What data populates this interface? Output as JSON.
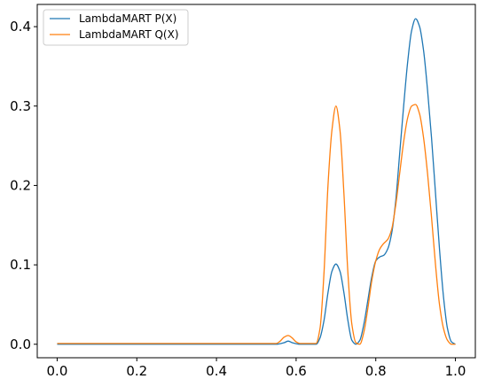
{
  "chart_data": {
    "type": "line",
    "title": "",
    "xlabel": "",
    "ylabel": "",
    "xlim": [
      -0.05,
      1.05
    ],
    "ylim": [
      -0.017,
      0.428
    ],
    "x_ticks": [
      0.0,
      0.2,
      0.4,
      0.6,
      0.8,
      1.0
    ],
    "x_tick_labels": [
      "0.0",
      "0.2",
      "0.4",
      "0.6",
      "0.8",
      "1.0"
    ],
    "y_ticks": [
      0.0,
      0.1,
      0.2,
      0.3,
      0.4
    ],
    "y_tick_labels": [
      "0.0",
      "0.1",
      "0.2",
      "0.3",
      "0.4"
    ],
    "grid": false,
    "legend_position": "top-left",
    "series": [
      {
        "name": "LambdaMART P(X)",
        "color": "#1f77b4",
        "x": [
          0.0,
          0.1,
          0.2,
          0.3,
          0.4,
          0.5,
          0.55,
          0.57,
          0.58,
          0.59,
          0.61,
          0.65,
          0.66,
          0.67,
          0.68,
          0.69,
          0.7,
          0.71,
          0.72,
          0.73,
          0.74,
          0.75,
          0.76,
          0.77,
          0.78,
          0.79,
          0.8,
          0.81,
          0.82,
          0.83,
          0.84,
          0.85,
          0.86,
          0.87,
          0.88,
          0.89,
          0.9,
          0.91,
          0.92,
          0.93,
          0.94,
          0.95,
          0.96,
          0.97,
          0.98,
          0.99,
          1.0
        ],
        "y": [
          0.0,
          0.0,
          0.0,
          0.0,
          0.0,
          0.0,
          0.0,
          0.002,
          0.004,
          0.002,
          0.0,
          0.0,
          0.008,
          0.03,
          0.065,
          0.092,
          0.101,
          0.092,
          0.065,
          0.03,
          0.005,
          0.0,
          0.005,
          0.025,
          0.055,
          0.085,
          0.105,
          0.11,
          0.112,
          0.12,
          0.14,
          0.18,
          0.24,
          0.3,
          0.355,
          0.395,
          0.41,
          0.4,
          0.37,
          0.32,
          0.26,
          0.19,
          0.12,
          0.06,
          0.02,
          0.003,
          0.0
        ]
      },
      {
        "name": "LambdaMART Q(X)",
        "color": "#ff7f0e",
        "x": [
          0.0,
          0.1,
          0.2,
          0.3,
          0.4,
          0.5,
          0.55,
          0.56,
          0.57,
          0.58,
          0.59,
          0.6,
          0.61,
          0.65,
          0.66,
          0.67,
          0.68,
          0.69,
          0.7,
          0.71,
          0.72,
          0.73,
          0.74,
          0.75,
          0.76,
          0.77,
          0.78,
          0.79,
          0.8,
          0.81,
          0.82,
          0.83,
          0.84,
          0.85,
          0.86,
          0.87,
          0.88,
          0.89,
          0.9,
          0.91,
          0.92,
          0.93,
          0.94,
          0.95,
          0.96,
          0.97,
          0.98,
          0.99,
          1.0
        ],
        "y": [
          0.001,
          0.001,
          0.001,
          0.001,
          0.001,
          0.001,
          0.001,
          0.004,
          0.009,
          0.011,
          0.008,
          0.003,
          0.001,
          0.001,
          0.02,
          0.09,
          0.2,
          0.27,
          0.3,
          0.27,
          0.19,
          0.09,
          0.025,
          0.002,
          0.0,
          0.015,
          0.045,
          0.08,
          0.105,
          0.12,
          0.127,
          0.132,
          0.145,
          0.175,
          0.215,
          0.255,
          0.285,
          0.3,
          0.302,
          0.29,
          0.26,
          0.215,
          0.16,
          0.1,
          0.05,
          0.02,
          0.005,
          0.0,
          0.0
        ]
      }
    ]
  }
}
